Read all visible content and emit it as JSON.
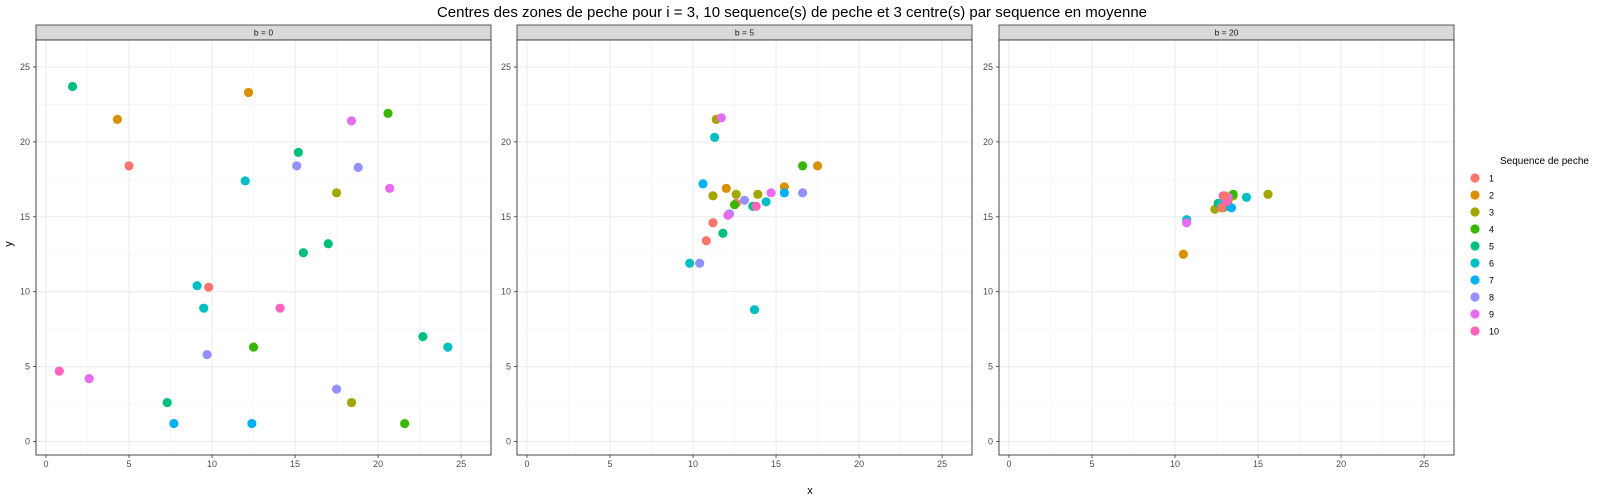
{
  "chart_data": {
    "type": "scatter",
    "title": "Centres des zones de peche pour i = 3, 10 sequence(s) de peche et 3 centre(s) par sequence en moyenne",
    "xlabel": "x",
    "ylabel": "y",
    "xlim": [
      -0.6,
      26.8
    ],
    "ylim": [
      -0.9,
      26.8
    ],
    "x_ticks": [
      0,
      5,
      10,
      15,
      20,
      25
    ],
    "y_ticks": [
      0,
      5,
      10,
      15,
      20,
      25
    ],
    "grid": true,
    "legend": {
      "title": "Sequence de peche",
      "position": "right",
      "entries": [
        "1",
        "2",
        "3",
        "4",
        "5",
        "6",
        "7",
        "8",
        "9",
        "10"
      ]
    },
    "colors": {
      "1": "#F8766D",
      "2": "#D89000",
      "3": "#A3A500",
      "4": "#39B600",
      "5": "#00BF7D",
      "6": "#00BFC4",
      "7": "#00B0F6",
      "8": "#9590FF",
      "9": "#E76BF3",
      "10": "#FF62BC"
    },
    "panels": [
      {
        "label": "b = 0",
        "points": [
          {
            "series": "1",
            "x": 5.0,
            "y": 18.4
          },
          {
            "series": "1",
            "x": 9.8,
            "y": 10.3
          },
          {
            "series": "2",
            "x": 4.3,
            "y": 21.5
          },
          {
            "series": "2",
            "x": 12.2,
            "y": 23.3
          },
          {
            "series": "3",
            "x": 17.5,
            "y": 16.6
          },
          {
            "series": "3",
            "x": 18.4,
            "y": 2.6
          },
          {
            "series": "4",
            "x": 20.6,
            "y": 21.9
          },
          {
            "series": "4",
            "x": 21.6,
            "y": 1.2
          },
          {
            "series": "4",
            "x": 12.5,
            "y": 6.3
          },
          {
            "series": "5",
            "x": 1.6,
            "y": 23.7
          },
          {
            "series": "5",
            "x": 15.2,
            "y": 19.3
          },
          {
            "series": "5",
            "x": 17.0,
            "y": 13.2
          },
          {
            "series": "5",
            "x": 15.5,
            "y": 12.6
          },
          {
            "series": "5",
            "x": 7.3,
            "y": 2.6
          },
          {
            "series": "5",
            "x": 22.7,
            "y": 7.0
          },
          {
            "series": "6",
            "x": 12.0,
            "y": 17.4
          },
          {
            "series": "6",
            "x": 9.1,
            "y": 10.4
          },
          {
            "series": "6",
            "x": 9.5,
            "y": 8.9
          },
          {
            "series": "6",
            "x": 24.2,
            "y": 6.3
          },
          {
            "series": "7",
            "x": 7.7,
            "y": 1.2
          },
          {
            "series": "7",
            "x": 12.4,
            "y": 1.2
          },
          {
            "series": "8",
            "x": 15.1,
            "y": 18.4
          },
          {
            "series": "8",
            "x": 18.8,
            "y": 18.3
          },
          {
            "series": "8",
            "x": 9.7,
            "y": 5.8
          },
          {
            "series": "8",
            "x": 17.5,
            "y": 3.5
          },
          {
            "series": "9",
            "x": 18.4,
            "y": 21.4
          },
          {
            "series": "9",
            "x": 20.7,
            "y": 16.9
          },
          {
            "series": "9",
            "x": 2.6,
            "y": 4.2
          },
          {
            "series": "10",
            "x": 14.1,
            "y": 8.9
          },
          {
            "series": "10",
            "x": 0.8,
            "y": 4.7
          }
        ]
      },
      {
        "label": "b = 5",
        "points": [
          {
            "series": "1",
            "x": 10.8,
            "y": 13.4
          },
          {
            "series": "1",
            "x": 11.2,
            "y": 14.6
          },
          {
            "series": "1",
            "x": 12.6,
            "y": 15.9
          },
          {
            "series": "2",
            "x": 12.0,
            "y": 16.9
          },
          {
            "series": "2",
            "x": 15.5,
            "y": 17.0
          },
          {
            "series": "2",
            "x": 17.5,
            "y": 18.4
          },
          {
            "series": "3",
            "x": 11.4,
            "y": 21.5
          },
          {
            "series": "3",
            "x": 11.2,
            "y": 16.4
          },
          {
            "series": "3",
            "x": 12.6,
            "y": 16.5
          },
          {
            "series": "3",
            "x": 13.9,
            "y": 16.5
          },
          {
            "series": "4",
            "x": 16.6,
            "y": 18.4
          },
          {
            "series": "4",
            "x": 12.5,
            "y": 15.8
          },
          {
            "series": "5",
            "x": 11.8,
            "y": 13.9
          },
          {
            "series": "5",
            "x": 13.6,
            "y": 15.7
          },
          {
            "series": "6",
            "x": 11.3,
            "y": 20.3
          },
          {
            "series": "6",
            "x": 14.4,
            "y": 16.0
          },
          {
            "series": "6",
            "x": 9.8,
            "y": 11.9
          },
          {
            "series": "6",
            "x": 13.7,
            "y": 8.8
          },
          {
            "series": "7",
            "x": 10.6,
            "y": 17.2
          },
          {
            "series": "7",
            "x": 15.5,
            "y": 16.6
          },
          {
            "series": "8",
            "x": 13.1,
            "y": 16.1
          },
          {
            "series": "8",
            "x": 12.2,
            "y": 15.2
          },
          {
            "series": "8",
            "x": 16.6,
            "y": 16.6
          },
          {
            "series": "8",
            "x": 10.4,
            "y": 11.9
          },
          {
            "series": "9",
            "x": 11.7,
            "y": 21.6
          },
          {
            "series": "9",
            "x": 14.7,
            "y": 16.6
          },
          {
            "series": "9",
            "x": 12.1,
            "y": 15.1
          },
          {
            "series": "10",
            "x": 13.8,
            "y": 15.7
          }
        ]
      },
      {
        "label": "b = 20",
        "points": [
          {
            "series": "2",
            "x": 10.5,
            "y": 12.5
          },
          {
            "series": "2",
            "x": 13.2,
            "y": 16.1
          },
          {
            "series": "3",
            "x": 15.6,
            "y": 16.5
          },
          {
            "series": "3",
            "x": 12.4,
            "y": 15.5
          },
          {
            "series": "3",
            "x": 12.9,
            "y": 15.6
          },
          {
            "series": "3",
            "x": 13.5,
            "y": 16.4
          },
          {
            "series": "4",
            "x": 13.5,
            "y": 16.5
          },
          {
            "series": "5",
            "x": 12.6,
            "y": 15.9
          },
          {
            "series": "5",
            "x": 13.2,
            "y": 15.7
          },
          {
            "series": "6",
            "x": 10.7,
            "y": 14.8
          },
          {
            "series": "6",
            "x": 14.3,
            "y": 16.3
          },
          {
            "series": "6",
            "x": 12.8,
            "y": 15.9
          },
          {
            "series": "7",
            "x": 13.4,
            "y": 15.6
          },
          {
            "series": "8",
            "x": 13.0,
            "y": 16.2
          },
          {
            "series": "9",
            "x": 10.7,
            "y": 14.6
          },
          {
            "series": "9",
            "x": 13.2,
            "y": 16.3
          },
          {
            "series": "10",
            "x": 12.9,
            "y": 16.4
          },
          {
            "series": "10",
            "x": 13.1,
            "y": 16.0
          },
          {
            "series": "1",
            "x": 13.0,
            "y": 16.4
          },
          {
            "series": "1",
            "x": 12.8,
            "y": 15.6
          }
        ]
      }
    ]
  }
}
